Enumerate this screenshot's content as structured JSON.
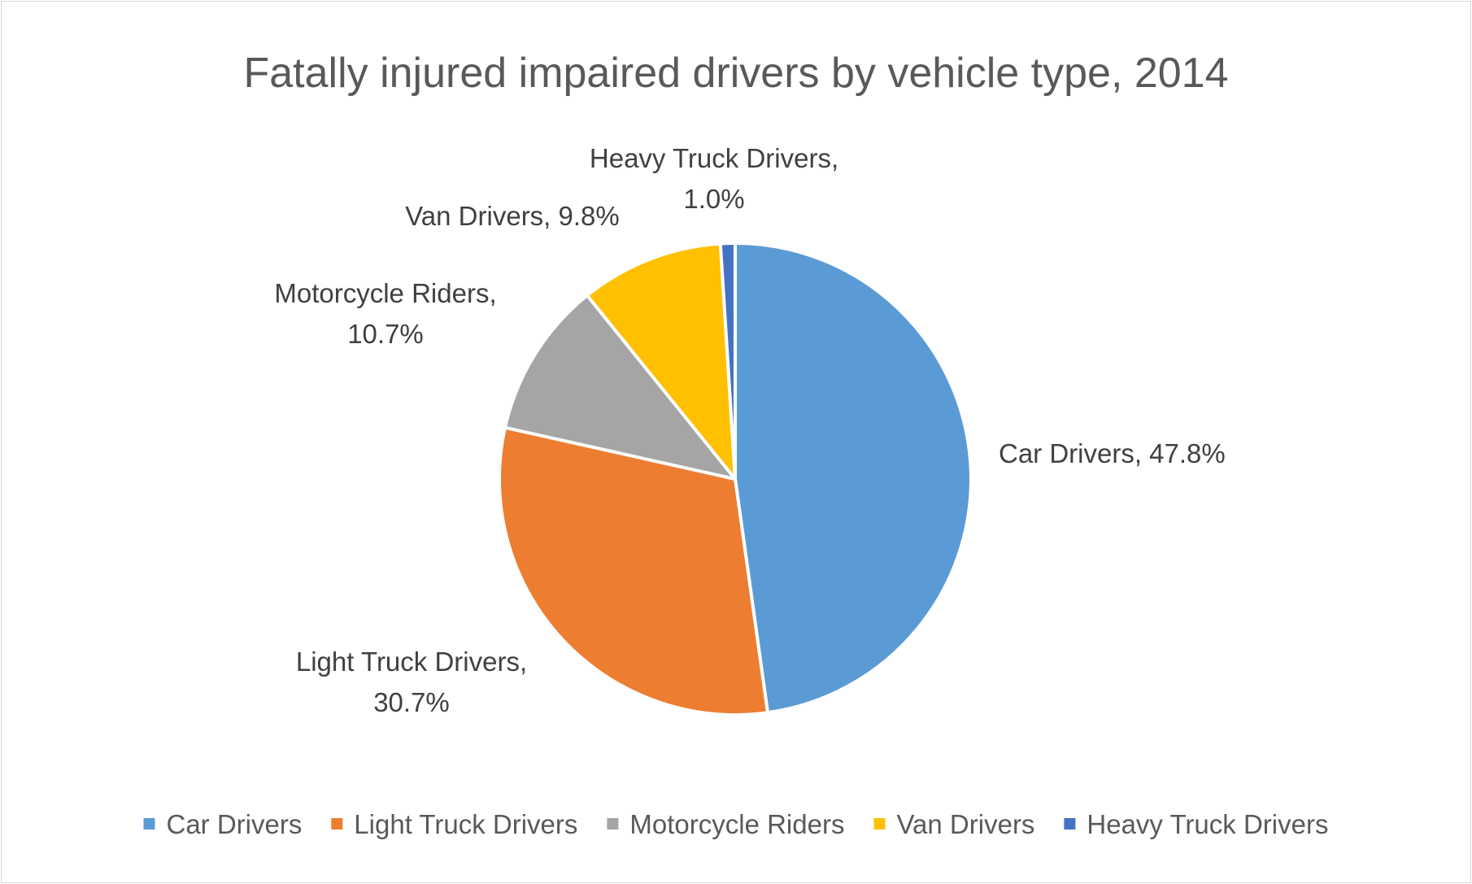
{
  "chart_data": {
    "type": "pie",
    "title": "Fatally injured impaired drivers by vehicle type, 2014",
    "categories": [
      "Car Drivers",
      "Light Truck Drivers",
      "Motorcycle Riders",
      "Van Drivers",
      "Heavy Truck Drivers"
    ],
    "values": [
      47.8,
      30.7,
      10.7,
      9.8,
      1.0
    ],
    "value_labels": [
      "47.8%",
      "30.7%",
      "10.7%",
      "9.8%",
      "1.0%"
    ],
    "data_labels": [
      [
        "Car Drivers, 47.8%"
      ],
      [
        "Light Truck Drivers,",
        "30.7%"
      ],
      [
        "Motorcycle Riders,",
        "10.7%"
      ],
      [
        "Van Drivers, 9.8%"
      ],
      [
        "Heavy Truck Drivers,",
        "1.0%"
      ]
    ],
    "colors": [
      "#5b9bd5",
      "#ed7d31",
      "#a5a5a5",
      "#ffc000",
      "#4472c4"
    ],
    "start_angle_deg": 0,
    "direction": "clockwise",
    "legend_position": "bottom"
  }
}
